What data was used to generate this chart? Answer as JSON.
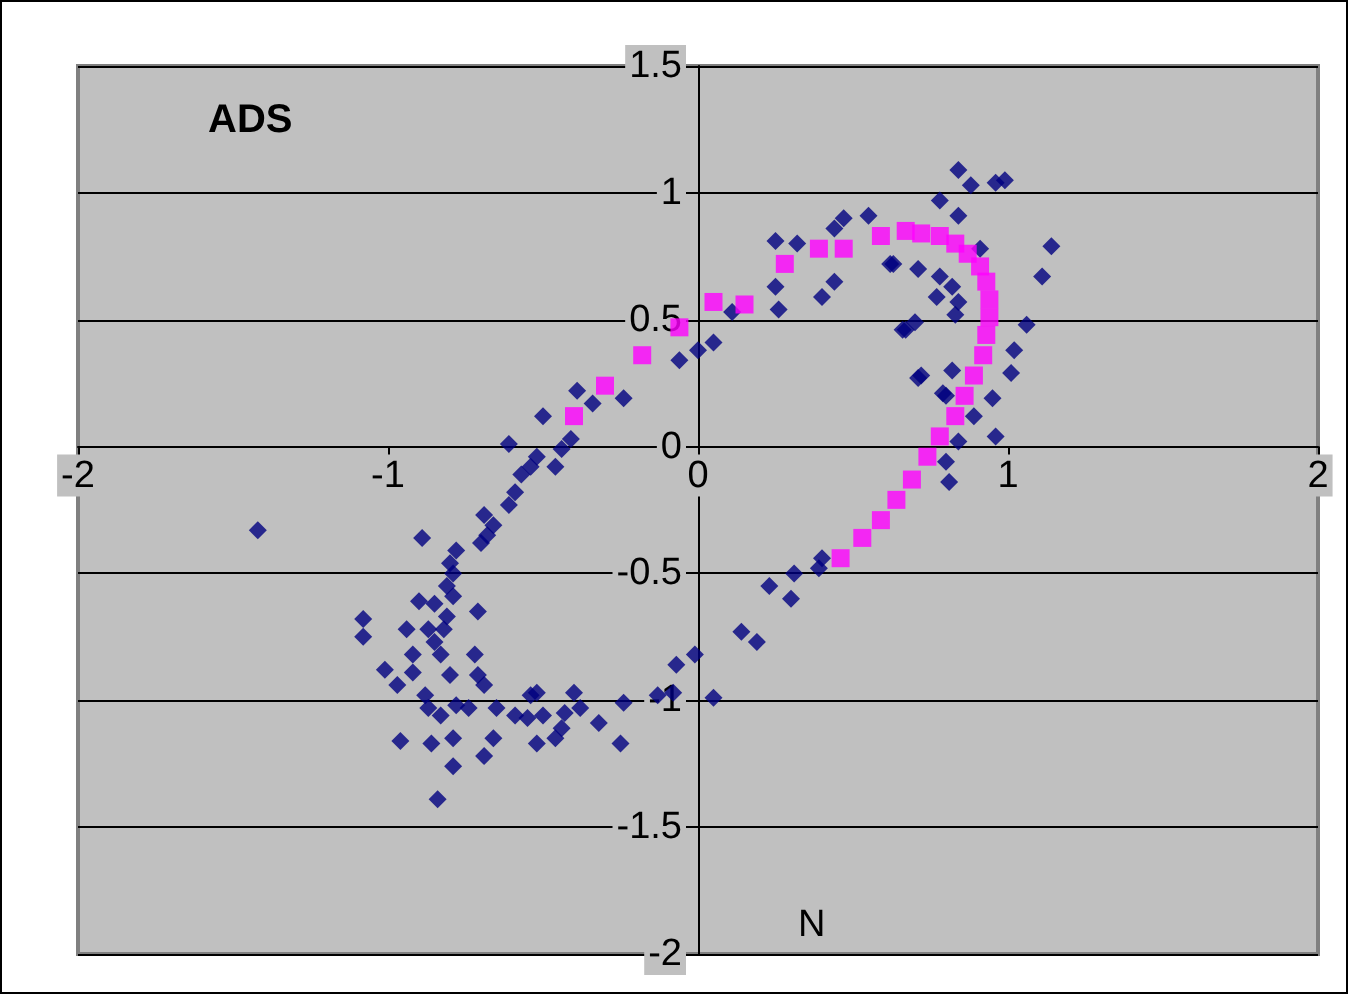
{
  "chart_data": {
    "type": "scatter",
    "title": "ADS",
    "xlabel": "N",
    "xlim": [
      -2,
      2
    ],
    "xticks": [
      -2,
      -1,
      0,
      1,
      2
    ],
    "ylim": [
      -2,
      1.5
    ],
    "yticks": [
      -2,
      -1.5,
      -1,
      -0.5,
      0,
      0.5,
      1,
      1.5
    ],
    "grid": "y",
    "series": [
      {
        "color": "#000080",
        "marker": "diamond",
        "x": [
          -1.42,
          -0.89,
          -0.61,
          -0.5,
          -0.39,
          -0.24,
          -0.34,
          -0.41,
          -0.44,
          -0.52,
          -0.54,
          -0.46,
          -0.57,
          -0.59,
          -0.61,
          -0.69,
          -0.66,
          -0.68,
          -0.7,
          -0.78,
          -0.8,
          -0.79,
          -0.81,
          -0.79,
          -0.9,
          -0.85,
          -0.71,
          -0.81,
          -1.08,
          -0.94,
          -0.87,
          -0.82,
          -1.08,
          -0.85,
          -0.92,
          -0.83,
          -0.72,
          -1.01,
          -0.92,
          -0.8,
          -0.71,
          -0.97,
          -0.69,
          -0.88,
          -0.87,
          -0.83,
          -0.78,
          -0.74,
          -0.65,
          -0.59,
          -0.54,
          -0.52,
          -0.55,
          -0.5,
          -0.43,
          -0.4,
          -0.38,
          -0.32,
          -0.24,
          -0.13,
          -0.08,
          -0.07,
          -0.01,
          0.05,
          -0.96,
          -0.86,
          -0.79,
          -0.66,
          -0.69,
          -0.52,
          -0.46,
          -0.44,
          -0.25,
          -0.79,
          -0.84,
          -0.06,
          0.0,
          0.05,
          0.11,
          0.25,
          0.26,
          0.25,
          0.32,
          0.44,
          0.4,
          0.44,
          0.47,
          0.55,
          0.62,
          0.78,
          0.84,
          0.88,
          0.96,
          0.99,
          0.84,
          0.91,
          1.11,
          1.14,
          0.71,
          0.78,
          0.77,
          0.82,
          0.84,
          0.83,
          0.67,
          0.7,
          1.06,
          1.02,
          1.01,
          0.72,
          0.82,
          0.8,
          0.95,
          0.89,
          0.96,
          0.84,
          0.81,
          0.8,
          0.4,
          0.23,
          0.31,
          0.19,
          0.39,
          0.3,
          0.14,
          0.63,
          0.66,
          0.71,
          0.79
        ],
        "values": [
          -0.33,
          -0.36,
          0.01,
          0.12,
          0.22,
          0.19,
          0.17,
          0.03,
          -0.01,
          -0.04,
          -0.08,
          -0.08,
          -0.11,
          -0.18,
          -0.23,
          -0.27,
          -0.31,
          -0.35,
          -0.38,
          -0.41,
          -0.46,
          -0.5,
          -0.55,
          -0.59,
          -0.61,
          -0.62,
          -0.65,
          -0.67,
          -0.68,
          -0.72,
          -0.72,
          -0.72,
          -0.75,
          -0.77,
          -0.82,
          -0.82,
          -0.82,
          -0.88,
          -0.89,
          -0.9,
          -0.9,
          -0.94,
          -0.94,
          -0.98,
          -1.03,
          -1.06,
          -1.02,
          -1.03,
          -1.03,
          -1.06,
          -0.98,
          -0.97,
          -1.07,
          -1.06,
          -1.05,
          -0.97,
          -1.03,
          -1.09,
          -1.01,
          -0.98,
          -0.97,
          -0.86,
          -0.82,
          -0.99,
          -1.16,
          -1.17,
          -1.15,
          -1.15,
          -1.22,
          -1.17,
          -1.15,
          -1.11,
          -1.17,
          -1.26,
          -1.39,
          0.34,
          0.38,
          0.41,
          0.53,
          0.63,
          0.54,
          0.81,
          0.8,
          0.65,
          0.59,
          0.86,
          0.9,
          0.91,
          0.72,
          0.97,
          1.09,
          1.03,
          1.04,
          1.05,
          0.91,
          0.78,
          0.67,
          0.79,
          0.7,
          0.67,
          0.59,
          0.63,
          0.57,
          0.52,
          0.46,
          0.49,
          0.48,
          0.38,
          0.29,
          0.28,
          0.3,
          0.2,
          0.19,
          0.12,
          0.04,
          0.02,
          -0.14,
          -0.06,
          -0.44,
          -0.55,
          -0.5,
          -0.77,
          -0.48,
          -0.6,
          -0.73,
          0.72,
          0.46,
          0.27,
          0.21
        ]
      },
      {
        "color": "#ff00ff",
        "marker": "square",
        "x": [
          -0.4,
          -0.3,
          -0.18,
          -0.06,
          0.05,
          0.15,
          0.28,
          0.39,
          0.47,
          0.59,
          0.67,
          0.72,
          0.78,
          0.83,
          0.87,
          0.91,
          0.93,
          0.94,
          0.94,
          0.93,
          0.92,
          0.89,
          0.86,
          0.83,
          0.78,
          0.74,
          0.69,
          0.64,
          0.59,
          0.53,
          0.46
        ],
        "values": [
          0.12,
          0.24,
          0.36,
          0.47,
          0.57,
          0.56,
          0.72,
          0.78,
          0.78,
          0.83,
          0.85,
          0.84,
          0.83,
          0.8,
          0.76,
          0.71,
          0.65,
          0.58,
          0.51,
          0.44,
          0.36,
          0.28,
          0.2,
          0.12,
          0.04,
          -0.04,
          -0.13,
          -0.21,
          -0.29,
          -0.36,
          -0.44
        ]
      }
    ]
  }
}
